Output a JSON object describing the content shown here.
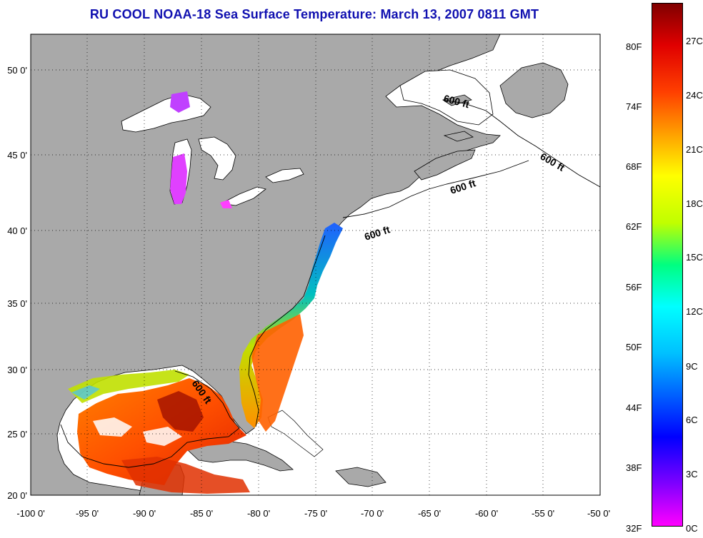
{
  "title": "RU COOL  NOAA-18  Sea Surface Temperature:  March 13, 2007 0811 GMT",
  "map": {
    "lon_ticks": [
      "-100 0'",
      "-95 0'",
      "-90 0'",
      "-85 0'",
      "-80 0'",
      "-75 0'",
      "-70 0'",
      "-65 0'",
      "-60 0'",
      "-55 0'",
      "-50 0'"
    ],
    "lat_ticks": [
      "50 0'",
      "45 0'",
      "40 0'",
      "35 0'",
      "30 0'",
      "25 0'",
      "20 0'"
    ],
    "lon_range": [
      -100,
      -50
    ],
    "lat_range": [
      20,
      52.5
    ],
    "contour_labels": [
      "600 ft",
      "600 ft",
      "600 ft",
      "600 ft",
      "600 ft"
    ],
    "land_color": "#a9a9a9",
    "no_data_color": "#ffffff"
  },
  "colorbar": {
    "fahrenheit_labels": [
      "80F",
      "74F",
      "68F",
      "62F",
      "56F",
      "50F",
      "44F",
      "38F",
      "32F"
    ],
    "celsius_labels": [
      "27C",
      "24C",
      "21C",
      "18C",
      "15C",
      "12C",
      "9C",
      "6C",
      "3C",
      "0C"
    ],
    "colors": [
      "#ff00ff",
      "#8000ff",
      "#0000ff",
      "#0060ff",
      "#00c0ff",
      "#00ffff",
      "#00ff80",
      "#c0ff00",
      "#ffff00",
      "#ffa000",
      "#ff4000",
      "#e00000",
      "#800000"
    ]
  }
}
